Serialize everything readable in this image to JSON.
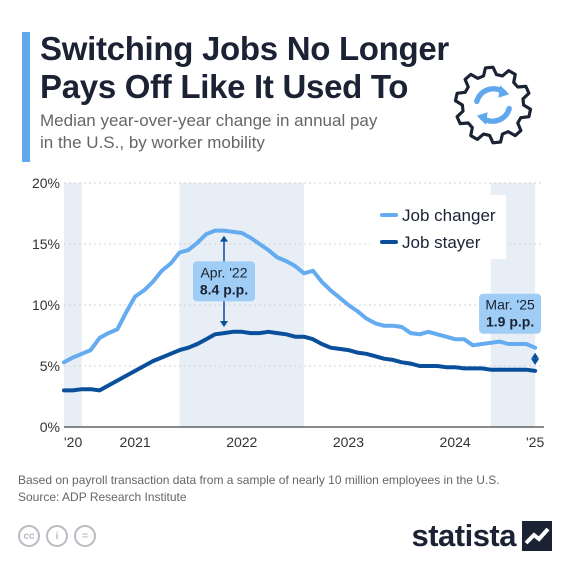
{
  "header": {
    "title_line1": "Switching Jobs No Longer",
    "title_line2": "Pays Off Like It Used To",
    "subtitle_line1": "Median year-over-year change in annual pay",
    "subtitle_line2": "in the U.S., by worker mobility"
  },
  "colors": {
    "accent": "#5fa8ee",
    "job_changer": "#64abf0",
    "job_stayer": "#0a4f9c",
    "shade": "#e8eef6",
    "title": "#1a2233"
  },
  "icons": [
    "gear-refresh-icon",
    "creative-commons-icon",
    "attribution-icon",
    "no-derivatives-icon",
    "statista-logo-icon"
  ],
  "chart_data": {
    "type": "line",
    "ylim": [
      0,
      20
    ],
    "yticks": [
      "0%",
      "5%",
      "10%",
      "15%",
      "20%"
    ],
    "xticks": [
      "'20",
      "2021",
      "2022",
      "2023",
      "2024",
      "'25"
    ],
    "xlim": [
      "2020-10",
      "2025-04"
    ],
    "legend_position": "top-right",
    "series": [
      {
        "name": "Job changer",
        "color": "#64abf0",
        "points": [
          [
            "2020-10",
            5.3
          ],
          [
            "2020-11",
            5.7
          ],
          [
            "2020-12",
            6.0
          ],
          [
            "2021-01",
            6.3
          ],
          [
            "2021-02",
            7.3
          ],
          [
            "2021-03",
            7.7
          ],
          [
            "2021-04",
            8.0
          ],
          [
            "2021-05",
            9.4
          ],
          [
            "2021-06",
            10.7
          ],
          [
            "2021-07",
            11.2
          ],
          [
            "2021-08",
            11.9
          ],
          [
            "2021-09",
            12.8
          ],
          [
            "2021-10",
            13.4
          ],
          [
            "2021-11",
            14.3
          ],
          [
            "2021-12",
            14.5
          ],
          [
            "2022-01",
            15.1
          ],
          [
            "2022-02",
            15.8
          ],
          [
            "2022-03",
            16.1
          ],
          [
            "2022-04",
            16.1
          ],
          [
            "2022-05",
            16.0
          ],
          [
            "2022-06",
            15.9
          ],
          [
            "2022-07",
            15.5
          ],
          [
            "2022-08",
            15.0
          ],
          [
            "2022-09",
            14.5
          ],
          [
            "2022-10",
            13.9
          ],
          [
            "2022-11",
            13.6
          ],
          [
            "2022-12",
            13.2
          ],
          [
            "2023-01",
            12.6
          ],
          [
            "2023-02",
            12.8
          ],
          [
            "2023-03",
            11.9
          ],
          [
            "2023-04",
            11.2
          ],
          [
            "2023-05",
            10.6
          ],
          [
            "2023-06",
            10.0
          ],
          [
            "2023-07",
            9.5
          ],
          [
            "2023-08",
            8.9
          ],
          [
            "2023-09",
            8.5
          ],
          [
            "2023-10",
            8.3
          ],
          [
            "2023-11",
            8.3
          ],
          [
            "2023-12",
            8.2
          ],
          [
            "2024-01",
            7.7
          ],
          [
            "2024-02",
            7.6
          ],
          [
            "2024-03",
            7.8
          ],
          [
            "2024-04",
            7.6
          ],
          [
            "2024-05",
            7.4
          ],
          [
            "2024-06",
            7.2
          ],
          [
            "2024-07",
            7.2
          ],
          [
            "2024-08",
            6.7
          ],
          [
            "2024-09",
            6.8
          ],
          [
            "2024-10",
            6.9
          ],
          [
            "2024-11",
            7.0
          ],
          [
            "2024-12",
            6.8
          ],
          [
            "2025-01",
            6.8
          ],
          [
            "2025-02",
            6.8
          ],
          [
            "2025-03",
            6.5
          ]
        ]
      },
      {
        "name": "Job stayer",
        "color": "#0a4f9c",
        "points": [
          [
            "2020-10",
            3.0
          ],
          [
            "2020-11",
            3.0
          ],
          [
            "2020-12",
            3.1
          ],
          [
            "2021-01",
            3.1
          ],
          [
            "2021-02",
            3.0
          ],
          [
            "2021-03",
            3.4
          ],
          [
            "2021-04",
            3.8
          ],
          [
            "2021-05",
            4.2
          ],
          [
            "2021-06",
            4.6
          ],
          [
            "2021-07",
            5.0
          ],
          [
            "2021-08",
            5.4
          ],
          [
            "2021-09",
            5.7
          ],
          [
            "2021-10",
            6.0
          ],
          [
            "2021-11",
            6.3
          ],
          [
            "2021-12",
            6.5
          ],
          [
            "2022-01",
            6.8
          ],
          [
            "2022-02",
            7.2
          ],
          [
            "2022-03",
            7.6
          ],
          [
            "2022-04",
            7.7
          ],
          [
            "2022-05",
            7.8
          ],
          [
            "2022-06",
            7.8
          ],
          [
            "2022-07",
            7.7
          ],
          [
            "2022-08",
            7.7
          ],
          [
            "2022-09",
            7.8
          ],
          [
            "2022-10",
            7.7
          ],
          [
            "2022-11",
            7.6
          ],
          [
            "2022-12",
            7.4
          ],
          [
            "2023-01",
            7.4
          ],
          [
            "2023-02",
            7.2
          ],
          [
            "2023-03",
            6.8
          ],
          [
            "2023-04",
            6.5
          ],
          [
            "2023-05",
            6.4
          ],
          [
            "2023-06",
            6.3
          ],
          [
            "2023-07",
            6.1
          ],
          [
            "2023-08",
            6.0
          ],
          [
            "2023-09",
            5.8
          ],
          [
            "2023-10",
            5.6
          ],
          [
            "2023-11",
            5.5
          ],
          [
            "2023-12",
            5.3
          ],
          [
            "2024-01",
            5.2
          ],
          [
            "2024-02",
            5.0
          ],
          [
            "2024-03",
            5.0
          ],
          [
            "2024-04",
            5.0
          ],
          [
            "2024-05",
            4.9
          ],
          [
            "2024-06",
            4.9
          ],
          [
            "2024-07",
            4.8
          ],
          [
            "2024-08",
            4.8
          ],
          [
            "2024-09",
            4.8
          ],
          [
            "2024-10",
            4.7
          ],
          [
            "2024-11",
            4.7
          ],
          [
            "2024-12",
            4.7
          ],
          [
            "2025-01",
            4.7
          ],
          [
            "2025-02",
            4.7
          ],
          [
            "2025-03",
            4.6
          ]
        ]
      }
    ],
    "shaded_bands": [
      [
        "2020-10",
        "2020-12"
      ],
      [
        "2021-11",
        "2023-01"
      ],
      [
        "2024-10",
        "2025-03"
      ]
    ],
    "annotations": [
      {
        "date_label": "Apr. '22",
        "value_label": "8.4 p.p.",
        "x": "2022-04",
        "y_top": 16.1,
        "y_bottom": 7.7
      },
      {
        "date_label": "Mar. '25",
        "value_label": "1.9 p.p.",
        "x": "2025-03",
        "y_top": 6.5,
        "y_bottom": 4.6
      }
    ]
  },
  "footer": {
    "note": "Based on payroll transaction data from a sample of nearly 10 million employees in the U.S.",
    "source": "Source: ADP Research Institute",
    "cc_labels": [
      "cc",
      "i",
      "="
    ],
    "brand": "statista"
  }
}
